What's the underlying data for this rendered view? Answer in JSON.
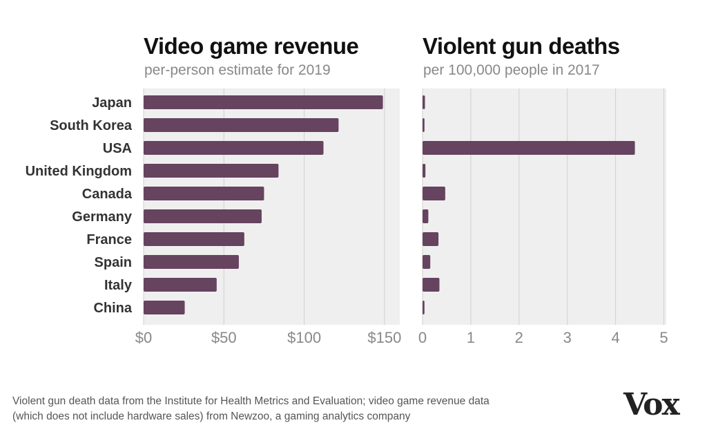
{
  "chart_data": [
    {
      "type": "bar",
      "orientation": "horizontal",
      "title": "Video game revenue",
      "subtitle": "per-person estimate for 2019",
      "categories": [
        "Japan",
        "South Korea",
        "USA",
        "United Kingdom",
        "Canada",
        "Germany",
        "France",
        "Spain",
        "Italy",
        "China"
      ],
      "values": [
        149,
        121.4,
        112,
        84,
        75,
        73.5,
        62.7,
        59.3,
        45.5,
        25.6
      ],
      "xlim": [
        0,
        160
      ],
      "ticks": [
        0,
        50,
        100,
        150
      ],
      "tick_labels": [
        "$0",
        "$50",
        "$100",
        "$150"
      ],
      "grid": true
    },
    {
      "type": "bar",
      "orientation": "horizontal",
      "title": "Violent gun deaths",
      "subtitle": "per 100,000 people in 2017",
      "categories": [
        "Japan",
        "South Korea",
        "USA",
        "United Kingdom",
        "Canada",
        "Germany",
        "France",
        "Spain",
        "Italy",
        "China"
      ],
      "values": [
        0.05,
        0.04,
        4.4,
        0.06,
        0.47,
        0.12,
        0.33,
        0.16,
        0.35,
        0.04
      ],
      "xlim": [
        0,
        5
      ],
      "ticks": [
        0,
        1,
        2,
        3,
        4,
        5
      ],
      "tick_labels": [
        "0",
        "1",
        "2",
        "3",
        "4",
        "5"
      ],
      "grid": true
    }
  ],
  "colors": {
    "bar": "#66435f",
    "plot_bg": "#efefef",
    "grid": "#d0d0d0"
  },
  "footnote": {
    "line1": "Violent gun death data from the Institute for Health Metrics and Evaluation; video game revenue data",
    "line2": "(which does not include hardware sales) from Newzoo, a gaming analytics company"
  },
  "logo": "Vox"
}
